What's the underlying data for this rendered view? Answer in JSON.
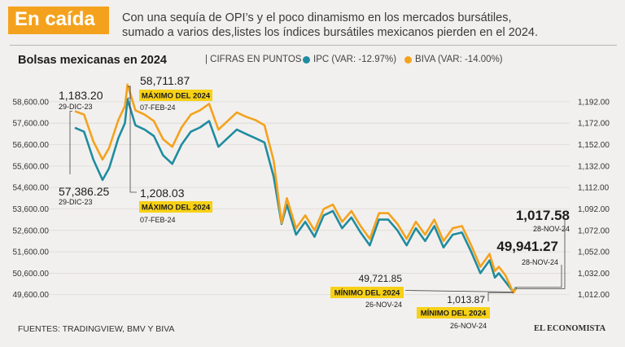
{
  "header": {
    "tag": "En caída",
    "subtitle_line1": "Con una sequía de OPI’s y el poco dinamismo en los mercados bursátiles,",
    "subtitle_line2": "sumado a varios des,listes los índices bursátiles mexicanos pierden en el 2024."
  },
  "footer": {
    "sources": "FUENTES: TRADINGVIEW, BMV Y BIVA",
    "brand": "EL ECONOMISTA"
  },
  "colors": {
    "ipc": "#1f8ca0",
    "biva": "#f4a21d",
    "highlight": "#f7d117",
    "text": "#1c1c1c"
  },
  "chart_data": {
    "type": "line",
    "title": "Bolsas mexicanas en 2024",
    "units": "| CIFRAS EN PUNTOS",
    "grid": true,
    "x_range": [
      "2023-12-29",
      "2024-11-28"
    ],
    "y_left": {
      "series": "IPC",
      "ticks": [
        "58,600.00",
        "57,600.00",
        "56,600.00",
        "55,600.00",
        "54,600.00",
        "53,600.00",
        "52,600.00",
        "51,600.00",
        "50,600.00",
        "49,600.00"
      ],
      "range": [
        49400,
        58900
      ]
    },
    "y_right": {
      "series": "BIVA",
      "ticks": [
        "1,192.00",
        "1,172.00",
        "1,152.00",
        "1,132.00",
        "1,112.00",
        "1,092.00",
        "1,072.00",
        "1,052.00",
        "1,032.00",
        "1,012.00"
      ],
      "range": [
        1008,
        1198
      ]
    },
    "series": [
      {
        "name": "IPC",
        "legend": "IPC (VAR: -12.97%)",
        "axis": "left",
        "points": [
          [
            "2023-12-29",
            57386
          ],
          [
            "2024-01-05",
            57200
          ],
          [
            "2024-01-12",
            55900
          ],
          [
            "2024-01-19",
            54950
          ],
          [
            "2024-01-24",
            55500
          ],
          [
            "2024-01-31",
            56900
          ],
          [
            "2024-02-05",
            57600
          ],
          [
            "2024-02-07",
            58712
          ],
          [
            "2024-02-13",
            57500
          ],
          [
            "2024-02-20",
            57300
          ],
          [
            "2024-02-27",
            57000
          ],
          [
            "2024-03-05",
            56100
          ],
          [
            "2024-03-12",
            55700
          ],
          [
            "2024-03-19",
            56600
          ],
          [
            "2024-03-26",
            57200
          ],
          [
            "2024-04-02",
            57400
          ],
          [
            "2024-04-09",
            57700
          ],
          [
            "2024-04-16",
            56500
          ],
          [
            "2024-04-23",
            56900
          ],
          [
            "2024-04-30",
            57300
          ],
          [
            "2024-05-07",
            57100
          ],
          [
            "2024-05-14",
            56900
          ],
          [
            "2024-05-21",
            56700
          ],
          [
            "2024-05-28",
            55100
          ],
          [
            "2024-06-03",
            52900
          ],
          [
            "2024-06-07",
            53800
          ],
          [
            "2024-06-14",
            52400
          ],
          [
            "2024-06-21",
            53000
          ],
          [
            "2024-06-28",
            52300
          ],
          [
            "2024-07-05",
            53300
          ],
          [
            "2024-07-12",
            53500
          ],
          [
            "2024-07-19",
            52700
          ],
          [
            "2024-07-26",
            53200
          ],
          [
            "2024-08-02",
            52500
          ],
          [
            "2024-08-09",
            51900
          ],
          [
            "2024-08-16",
            53100
          ],
          [
            "2024-08-23",
            53100
          ],
          [
            "2024-08-30",
            52600
          ],
          [
            "2024-09-06",
            51900
          ],
          [
            "2024-09-13",
            52700
          ],
          [
            "2024-09-20",
            52100
          ],
          [
            "2024-09-27",
            52800
          ],
          [
            "2024-10-04",
            51800
          ],
          [
            "2024-10-11",
            52400
          ],
          [
            "2024-10-18",
            52500
          ],
          [
            "2024-10-25",
            51600
          ],
          [
            "2024-11-01",
            50600
          ],
          [
            "2024-11-08",
            51200
          ],
          [
            "2024-11-12",
            50400
          ],
          [
            "2024-11-15",
            50600
          ],
          [
            "2024-11-20",
            50200
          ],
          [
            "2024-11-26",
            49722
          ],
          [
            "2024-11-28",
            49941
          ]
        ]
      },
      {
        "name": "BIVA",
        "legend": "BIVA (VAR: -14.00%)",
        "axis": "right",
        "points": [
          [
            "2023-12-29",
            1183.2
          ],
          [
            "2024-01-05",
            1180
          ],
          [
            "2024-01-12",
            1155
          ],
          [
            "2024-01-19",
            1138
          ],
          [
            "2024-01-24",
            1149
          ],
          [
            "2024-01-31",
            1175
          ],
          [
            "2024-02-05",
            1188
          ],
          [
            "2024-02-07",
            1208.03
          ],
          [
            "2024-02-13",
            1184
          ],
          [
            "2024-02-20",
            1180
          ],
          [
            "2024-02-27",
            1174
          ],
          [
            "2024-03-05",
            1157
          ],
          [
            "2024-03-12",
            1150
          ],
          [
            "2024-03-19",
            1168
          ],
          [
            "2024-03-26",
            1180
          ],
          [
            "2024-04-02",
            1184
          ],
          [
            "2024-04-09",
            1190
          ],
          [
            "2024-04-16",
            1166
          ],
          [
            "2024-04-23",
            1174
          ],
          [
            "2024-04-30",
            1182
          ],
          [
            "2024-05-07",
            1178
          ],
          [
            "2024-05-14",
            1175
          ],
          [
            "2024-05-21",
            1170
          ],
          [
            "2024-05-28",
            1137
          ],
          [
            "2024-06-03",
            1079
          ],
          [
            "2024-06-07",
            1102
          ],
          [
            "2024-06-14",
            1074
          ],
          [
            "2024-06-21",
            1086
          ],
          [
            "2024-06-28",
            1072
          ],
          [
            "2024-07-05",
            1092
          ],
          [
            "2024-07-12",
            1096
          ],
          [
            "2024-07-19",
            1080
          ],
          [
            "2024-07-26",
            1090
          ],
          [
            "2024-08-02",
            1076
          ],
          [
            "2024-08-09",
            1064
          ],
          [
            "2024-08-16",
            1088
          ],
          [
            "2024-08-23",
            1088
          ],
          [
            "2024-08-30",
            1078
          ],
          [
            "2024-09-06",
            1064
          ],
          [
            "2024-09-13",
            1080
          ],
          [
            "2024-09-20",
            1068
          ],
          [
            "2024-09-27",
            1082
          ],
          [
            "2024-10-04",
            1062
          ],
          [
            "2024-10-11",
            1074
          ],
          [
            "2024-10-18",
            1076
          ],
          [
            "2024-10-25",
            1058
          ],
          [
            "2024-11-01",
            1038
          ],
          [
            "2024-11-08",
            1050
          ],
          [
            "2024-11-12",
            1034
          ],
          [
            "2024-11-15",
            1038
          ],
          [
            "2024-11-20",
            1030
          ],
          [
            "2024-11-26",
            1013.87
          ],
          [
            "2024-11-28",
            1017.58
          ]
        ]
      }
    ],
    "annotations": [
      {
        "series": "BIVA",
        "date": "2023-12-29",
        "value": "1,183.20",
        "date_label": "29-DIC-23"
      },
      {
        "series": "IPC",
        "date": "2023-12-29",
        "value": "57,386.25",
        "date_label": "29-DIC-23"
      },
      {
        "series": "IPC",
        "date": "2024-02-07",
        "value": "58,711.87",
        "badge": "MÁXIMO DEL 2024",
        "date_label": "07-FEB-24"
      },
      {
        "series": "BIVA",
        "date": "2024-02-07",
        "value": "1,208.03",
        "badge": "MÁXIMO DEL 2024",
        "date_label": "07-FEB-24"
      },
      {
        "series": "BIVA",
        "date": "2024-11-28",
        "value": "1,017.58",
        "date_label": "28-NOV-24"
      },
      {
        "series": "IPC",
        "date": "2024-11-28",
        "value": "49,941.27",
        "date_label": "28-NOV-24"
      },
      {
        "series": "IPC",
        "date": "2024-11-26",
        "value": "49,721.85",
        "badge": "MÍNIMO DEL 2024",
        "date_label": "26-NOV-24"
      },
      {
        "series": "BIVA",
        "date": "2024-11-26",
        "value": "1,013.87",
        "badge": "MÍNIMO DEL 2024",
        "date_label": "26-NOV-24"
      }
    ]
  }
}
